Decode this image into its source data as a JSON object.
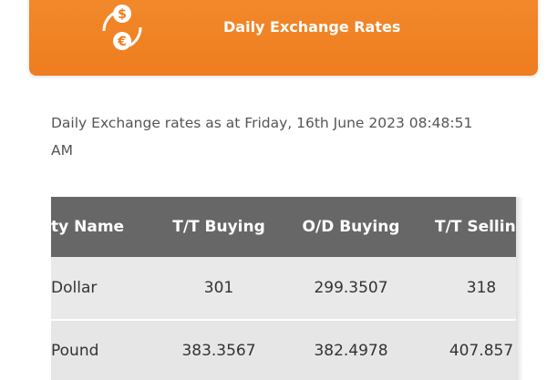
{
  "header": {
    "title": "Daily Exchange Rates"
  },
  "timestamp": "Daily Exchange rates as at Friday, 16th June 2023 08:48:51 AM",
  "table": {
    "columns": [
      "ty Name",
      "T/T Buying",
      "O/D Buying",
      "T/T Sellin"
    ],
    "rows": [
      [
        "Dollar",
        "301",
        "299.3507",
        "318"
      ],
      [
        "Pound",
        "383.3567",
        "382.4978",
        "407.857"
      ]
    ]
  }
}
